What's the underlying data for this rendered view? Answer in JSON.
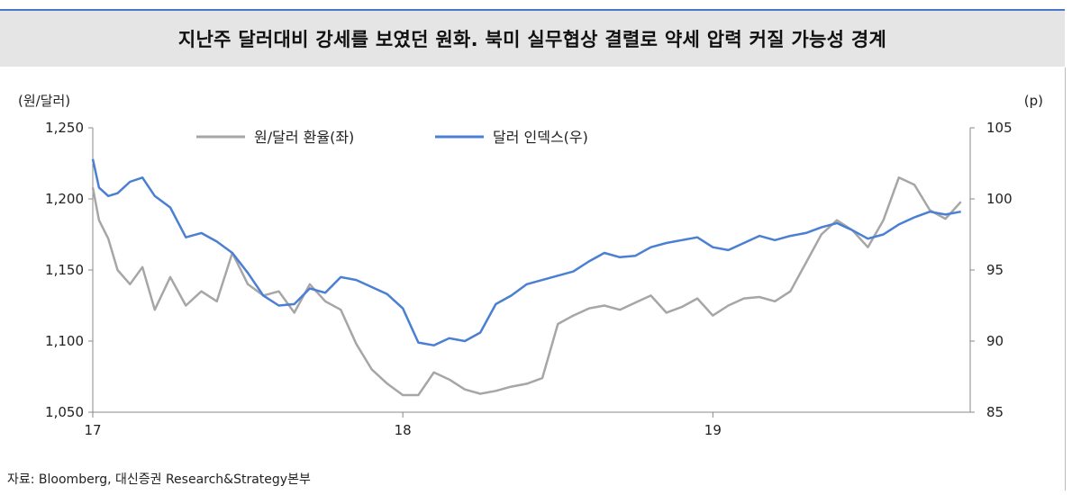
{
  "header": {
    "title": "지난주 달러대비 강세를 보였던 원화. 북미 실무협상 결렬로 약세 압력 커질 가능성 경계"
  },
  "footer": {
    "source": "자료: Bloomberg, 대신증권 Research&Strategy본부"
  },
  "colors": {
    "krw": "#a6a6a6",
    "dxy": "#4a7fd4",
    "axis": "#888888",
    "title_bg": "#e5e5e5",
    "rule": "#4a78c8"
  },
  "chart_data": {
    "type": "line",
    "title": "",
    "x_tick_labels": [
      "17",
      "18",
      "19"
    ],
    "x_ticks": [
      2017.0,
      2018.0,
      2019.0
    ],
    "xlim": [
      2017.0,
      2019.83
    ],
    "left_axis": {
      "unit_label": "(원/달러)",
      "ylim": [
        1050,
        1250
      ],
      "ticks": [
        1050,
        1100,
        1150,
        1200,
        1250
      ]
    },
    "right_axis": {
      "unit_label": "(p)",
      "ylim": [
        85,
        105
      ],
      "ticks": [
        85,
        90,
        95,
        100,
        105
      ]
    },
    "legend_position": "top-left",
    "grid": false,
    "series": [
      {
        "name": "원/달러 환율(좌)",
        "axis": "left",
        "color": "#a6a6a6",
        "x": [
          2017.0,
          2017.02,
          2017.05,
          2017.08,
          2017.12,
          2017.16,
          2017.2,
          2017.25,
          2017.3,
          2017.35,
          2017.4,
          2017.45,
          2017.5,
          2017.55,
          2017.6,
          2017.65,
          2017.7,
          2017.75,
          2017.8,
          2017.85,
          2017.9,
          2017.95,
          2018.0,
          2018.05,
          2018.1,
          2018.15,
          2018.2,
          2018.25,
          2018.3,
          2018.35,
          2018.4,
          2018.45,
          2018.5,
          2018.55,
          2018.6,
          2018.65,
          2018.7,
          2018.75,
          2018.8,
          2018.85,
          2018.9,
          2018.95,
          2019.0,
          2019.05,
          2019.1,
          2019.15,
          2019.2,
          2019.25,
          2019.3,
          2019.35,
          2019.4,
          2019.45,
          2019.5,
          2019.55,
          2019.6,
          2019.65,
          2019.7,
          2019.75,
          2019.8
        ],
        "values": [
          1208,
          1185,
          1172,
          1150,
          1140,
          1152,
          1122,
          1145,
          1125,
          1135,
          1128,
          1162,
          1140,
          1132,
          1135,
          1120,
          1140,
          1128,
          1122,
          1098,
          1080,
          1070,
          1062,
          1062,
          1078,
          1073,
          1066,
          1063,
          1065,
          1068,
          1070,
          1074,
          1112,
          1118,
          1123,
          1125,
          1122,
          1127,
          1132,
          1120,
          1124,
          1130,
          1118,
          1125,
          1130,
          1131,
          1128,
          1135,
          1155,
          1175,
          1185,
          1178,
          1166,
          1185,
          1215,
          1210,
          1192,
          1186,
          1198
        ]
      },
      {
        "name": "달러 인덱스(우)",
        "axis": "right",
        "color": "#4a7fd4",
        "x": [
          2017.0,
          2017.02,
          2017.05,
          2017.08,
          2017.12,
          2017.16,
          2017.2,
          2017.25,
          2017.3,
          2017.35,
          2017.4,
          2017.45,
          2017.5,
          2017.55,
          2017.6,
          2017.65,
          2017.7,
          2017.75,
          2017.8,
          2017.85,
          2017.9,
          2017.95,
          2018.0,
          2018.05,
          2018.1,
          2018.15,
          2018.2,
          2018.25,
          2018.3,
          2018.35,
          2018.4,
          2018.45,
          2018.5,
          2018.55,
          2018.6,
          2018.65,
          2018.7,
          2018.75,
          2018.8,
          2018.85,
          2018.9,
          2018.95,
          2019.0,
          2019.05,
          2019.1,
          2019.15,
          2019.2,
          2019.25,
          2019.3,
          2019.35,
          2019.4,
          2019.45,
          2019.5,
          2019.55,
          2019.6,
          2019.65,
          2019.7,
          2019.75,
          2019.8
        ],
        "values": [
          102.8,
          100.8,
          100.2,
          100.4,
          101.2,
          101.5,
          100.2,
          99.4,
          97.3,
          97.6,
          97.0,
          96.2,
          94.8,
          93.2,
          92.5,
          92.6,
          93.7,
          93.4,
          94.5,
          94.3,
          93.8,
          93.3,
          92.3,
          89.9,
          89.7,
          90.2,
          90.0,
          90.6,
          92.6,
          93.2,
          94.0,
          94.3,
          94.6,
          94.9,
          95.6,
          96.2,
          95.9,
          96.0,
          96.6,
          96.9,
          97.1,
          97.3,
          96.6,
          96.4,
          96.9,
          97.4,
          97.1,
          97.4,
          97.6,
          98.0,
          98.3,
          97.8,
          97.2,
          97.5,
          98.2,
          98.7,
          99.1,
          98.9,
          99.1
        ]
      }
    ]
  }
}
